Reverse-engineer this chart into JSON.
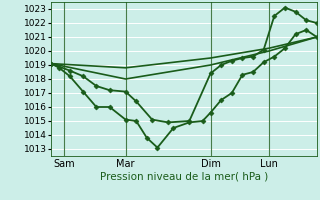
{
  "background_color": "#cceee8",
  "grid_color": "#ffffff",
  "line_color": "#1a5c1a",
  "xlabel": "Pression niveau de la mer( hPa )",
  "ylim": [
    1012.5,
    1023.5
  ],
  "yticks": [
    1013,
    1014,
    1015,
    1016,
    1017,
    1018,
    1019,
    1020,
    1021,
    1022,
    1023
  ],
  "day_labels": [
    "Sam",
    "Mar",
    "Dim",
    "Lun"
  ],
  "day_positions": [
    5,
    28,
    60,
    82
  ],
  "total_points": 100,
  "series": [
    {
      "x": [
        0,
        3,
        7,
        12,
        17,
        22,
        28,
        32,
        36,
        40,
        46,
        52,
        57,
        60,
        64,
        68,
        72,
        76,
        80,
        84,
        88,
        92,
        96,
        100
      ],
      "y": [
        1019.1,
        1018.8,
        1018.2,
        1017.1,
        1016.0,
        1016.0,
        1015.1,
        1015.0,
        1013.8,
        1013.1,
        1014.5,
        1014.9,
        1015.0,
        1015.6,
        1016.5,
        1017.0,
        1018.3,
        1018.5,
        1019.2,
        1019.6,
        1020.2,
        1021.2,
        1021.5,
        1021.0
      ],
      "marker": "D",
      "markersize": 2.5,
      "linewidth": 1.3
    },
    {
      "x": [
        0,
        28,
        60,
        82,
        100
      ],
      "y": [
        1019.1,
        1018.8,
        1019.5,
        1020.2,
        1021.0
      ],
      "marker": null,
      "linewidth": 1.2
    },
    {
      "x": [
        0,
        28,
        60,
        82,
        100
      ],
      "y": [
        1019.1,
        1018.0,
        1019.0,
        1020.0,
        1021.0
      ],
      "marker": null,
      "linewidth": 1.2
    },
    {
      "x": [
        0,
        7,
        12,
        17,
        22,
        28,
        32,
        38,
        44,
        52,
        60,
        64,
        68,
        72,
        76,
        80,
        84,
        88,
        92,
        96,
        100
      ],
      "y": [
        1019.1,
        1018.6,
        1018.2,
        1017.5,
        1017.2,
        1017.1,
        1016.4,
        1015.1,
        1014.9,
        1015.0,
        1018.4,
        1019.0,
        1019.3,
        1019.5,
        1019.6,
        1020.1,
        1022.5,
        1023.1,
        1022.8,
        1022.2,
        1022.0
      ],
      "marker": "D",
      "markersize": 2.5,
      "linewidth": 1.3
    }
  ]
}
